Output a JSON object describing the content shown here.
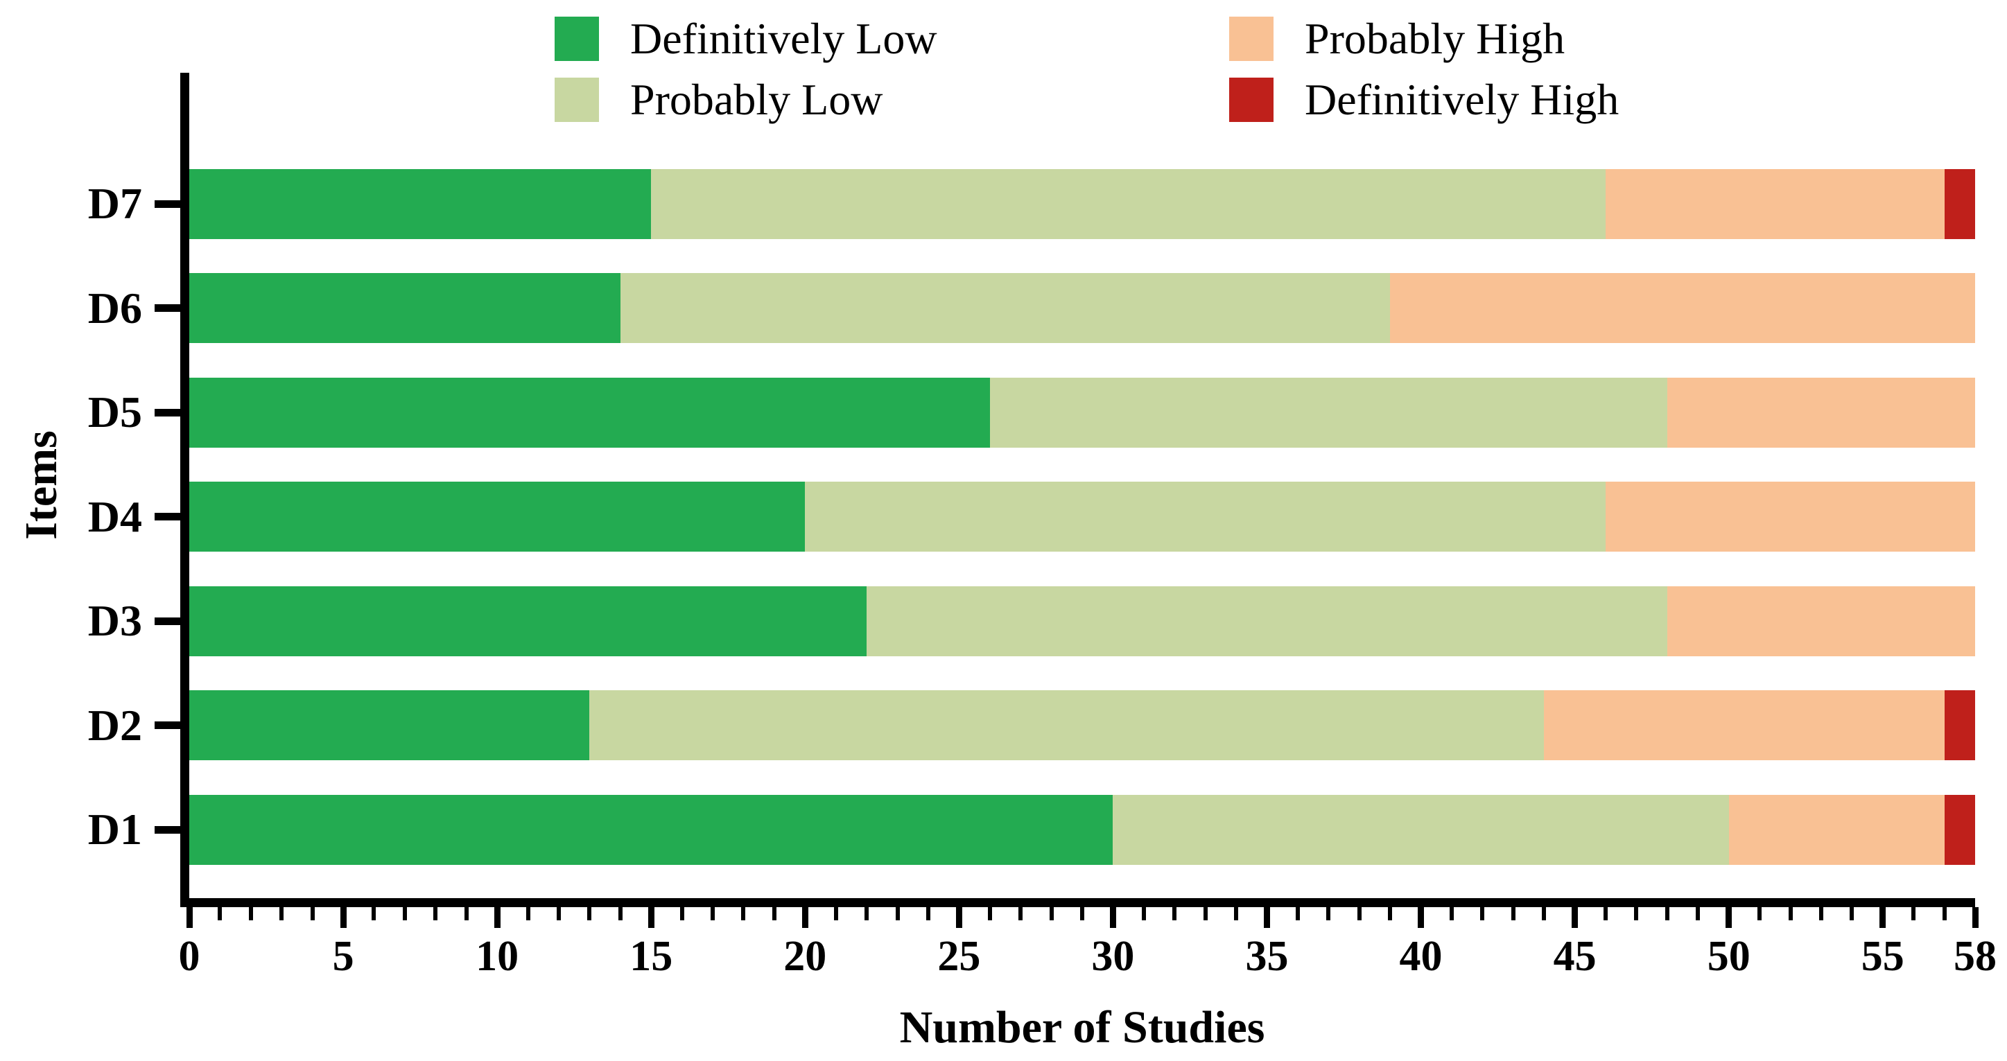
{
  "chart_data": {
    "type": "bar",
    "orientation": "horizontal",
    "stacked": true,
    "title": "",
    "xlabel": "Number of Studies",
    "ylabel": "Items",
    "categories": [
      "D1",
      "D2",
      "D3",
      "D4",
      "D5",
      "D6",
      "D7"
    ],
    "series": [
      {
        "name": "Definitively Low",
        "color": "#23AB51",
        "values": [
          30,
          13,
          22,
          20,
          26,
          14,
          15
        ]
      },
      {
        "name": "Probably Low",
        "color": "#C8D7A1",
        "values": [
          20,
          31,
          26,
          26,
          22,
          25,
          31
        ]
      },
      {
        "name": "Probably High",
        "color": "#F9C194",
        "values": [
          7,
          13,
          10,
          12,
          10,
          19,
          11
        ]
      },
      {
        "name": "Definitively High",
        "color": "#BF201B",
        "values": [
          1,
          1,
          0,
          0,
          0,
          0,
          1
        ]
      }
    ],
    "xlim": [
      0,
      58
    ],
    "x_major_ticks": [
      0,
      5,
      10,
      15,
      20,
      25,
      30,
      35,
      40,
      45,
      50,
      55,
      58
    ],
    "x_minor_tick_step": 1,
    "grid": false,
    "legend_position": "top",
    "legend_columns": [
      [
        "Definitively Low",
        "Probably Low"
      ],
      [
        "Probably High",
        "Definitively High"
      ]
    ]
  }
}
